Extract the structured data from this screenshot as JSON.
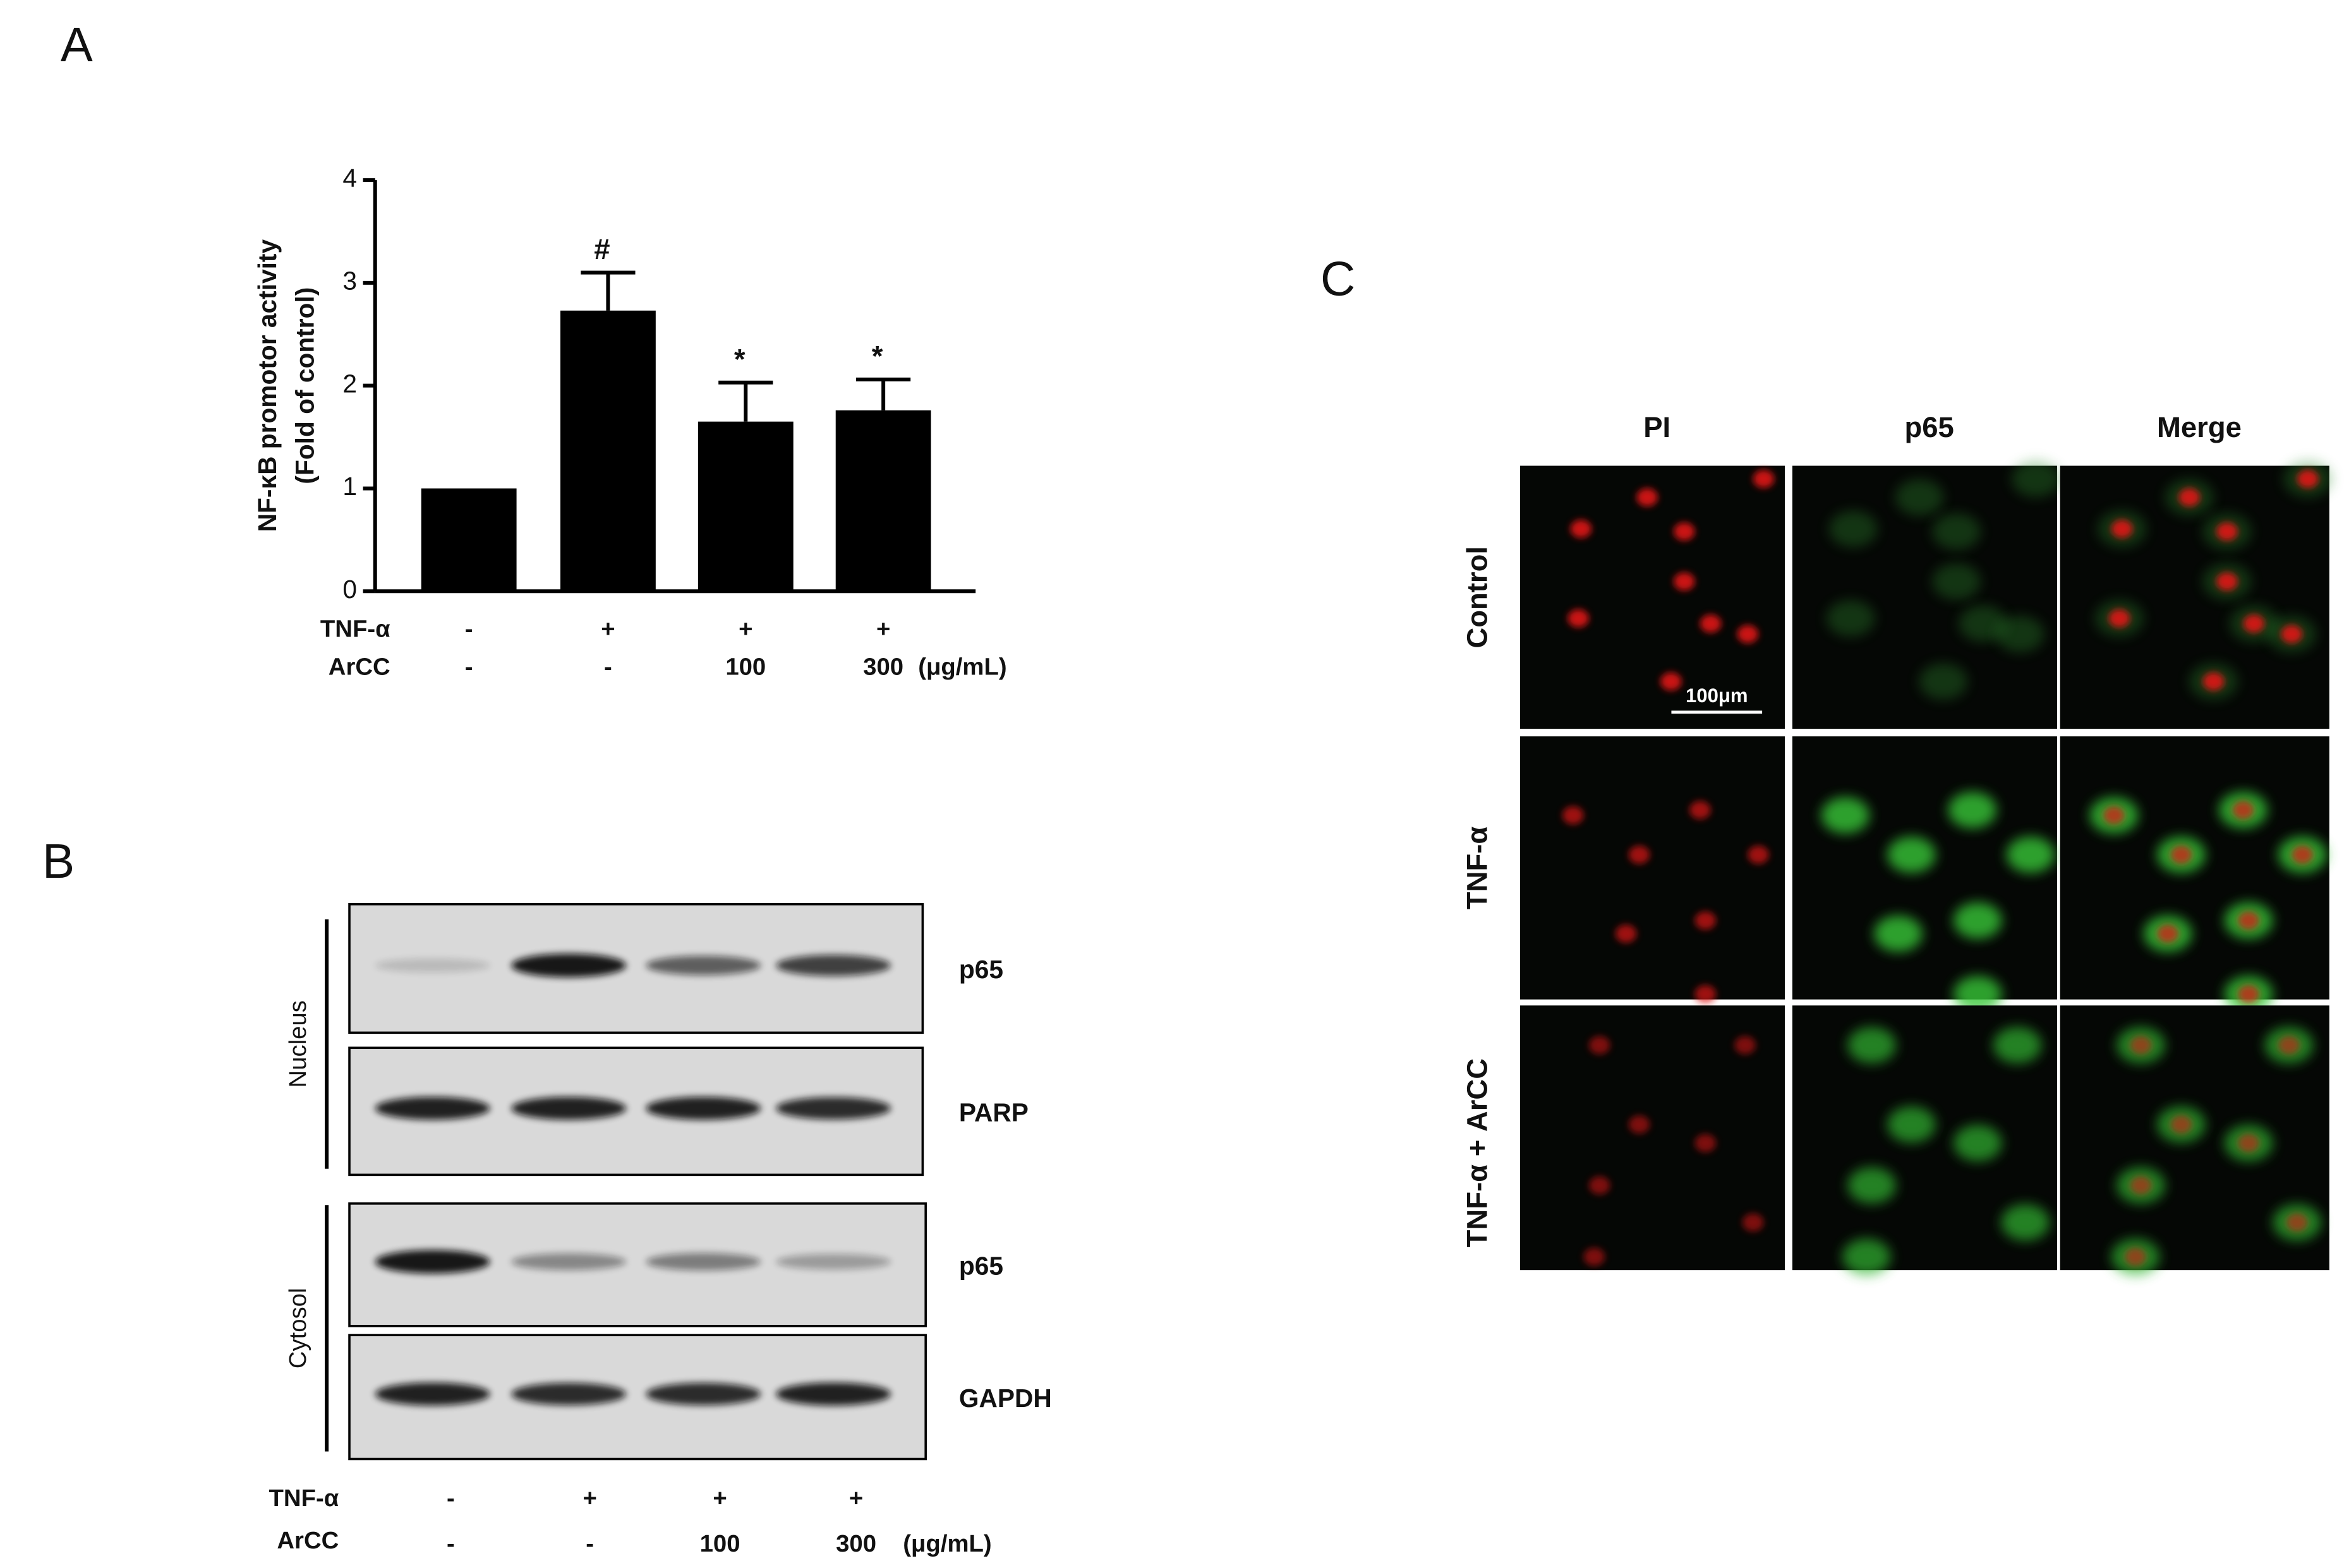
{
  "panel_labels": [
    "A",
    "B",
    "C"
  ],
  "chart_data": {
    "type": "bar",
    "ylabel": [
      "NF-κB promotor activity",
      "(Fold of control)"
    ],
    "condition_rows": [
      {
        "label": "TNF-α",
        "values": [
          "-",
          "+",
          "+",
          "+"
        ]
      },
      {
        "label": "ArCC",
        "values": [
          "-",
          "-",
          "100",
          "300"
        ]
      }
    ],
    "unit": "(μg/mL)",
    "values": [
      1.0,
      2.73,
      1.65,
      1.76
    ],
    "errors": [
      0,
      0.37,
      0.38,
      0.3
    ],
    "annotations": [
      null,
      "#",
      "*",
      "*"
    ],
    "color": "#000000",
    "ylim": [
      0,
      4
    ],
    "yticks": [
      0,
      1,
      2,
      3,
      4
    ]
  },
  "blot": {
    "compartments": [
      "Nucleus",
      "Cytosol"
    ],
    "bands": [
      "p65",
      "PARP",
      "p65",
      "GAPDH"
    ],
    "condition_rows": [
      {
        "label": "TNF-α",
        "values": [
          "-",
          "+",
          "+",
          "+"
        ]
      },
      {
        "label": "ArCC",
        "values": [
          "-",
          "-",
          "100",
          "300"
        ]
      }
    ],
    "unit": "(μg/mL)"
  },
  "microscopy": {
    "columns": [
      "PI",
      "p65",
      "Merge"
    ],
    "rows": [
      "Control",
      "TNF-α",
      "TNF-α + ArCC"
    ],
    "scale_bar": "100μm"
  }
}
